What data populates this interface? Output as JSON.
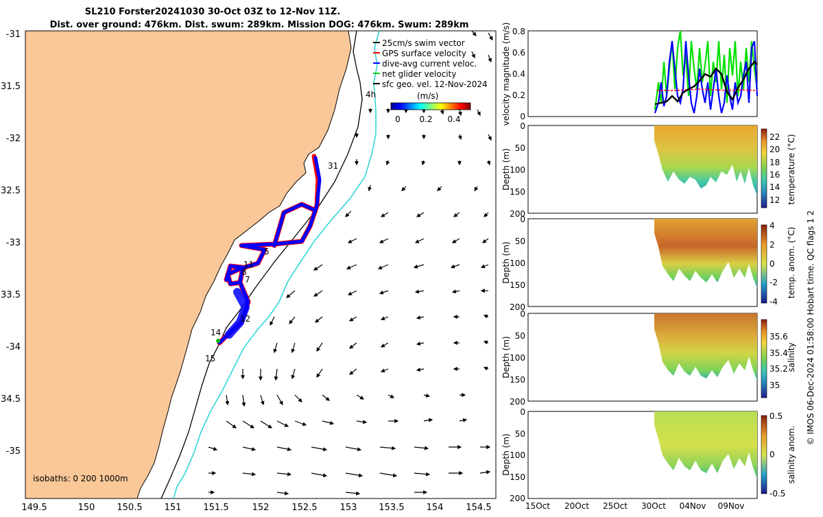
{
  "title": {
    "line1": "SL210 Forster20241030 30-Oct 03Z to 12-Nov 11Z.",
    "line2": "Dist. over ground: 476km. Dist. swum: 289km. Mission DOG: 476km. Swum: 289km"
  },
  "map": {
    "lat_ticks": [
      "-31",
      "31.5",
      "-32",
      "32.5",
      "-33",
      "33.5",
      "-34",
      "34.5",
      "-35"
    ],
    "lon_ticks": [
      "149.5",
      "150",
      "150.5",
      "151",
      "151.5",
      "152",
      "152.5",
      "153",
      "153.5",
      "154",
      "154.5"
    ],
    "legend": [
      "25cm/s swim vector",
      "GPS surface velocity",
      "dive-avg current veloc.",
      "net glider velocity",
      "sfc geo. vel. 12-Nov-2024"
    ],
    "colorbar_unit": "(m/s)",
    "colorbar_ticks": [
      "0",
      "0.2",
      "0.4"
    ],
    "track_labels": [
      "31",
      "5",
      "11",
      "7",
      "8",
      "12",
      "14",
      "15",
      "4h"
    ],
    "isobaths": "isobaths: 0   200  1000m",
    "colors": {
      "land": "#fac898",
      "track_blue": "#0000ff",
      "track_red": "#ff0000",
      "isobath_1000": "#33d6d6"
    }
  },
  "panels": [
    {
      "ylabel": "velocity magnitude (m/s)",
      "yticks": [
        "0.8",
        "0.6",
        "0.4",
        "0.2",
        "0"
      ],
      "colorbar_label": "",
      "cticks": []
    },
    {
      "ylabel": "Depth (m)",
      "yticks": [
        "0",
        "50",
        "100",
        "150",
        "200"
      ],
      "colorbar_label": "temperature (°C)",
      "cticks": [
        "22",
        "20",
        "18",
        "16",
        "14",
        "12"
      ]
    },
    {
      "ylabel": "Depth (m)",
      "yticks": [
        "0",
        "50",
        "100",
        "150",
        "200"
      ],
      "colorbar_label": "temp. anom. (°C)",
      "cticks": [
        "4",
        "2",
        "0",
        "-2",
        "-4"
      ]
    },
    {
      "ylabel": "Depth (m)",
      "yticks": [
        "0",
        "50",
        "100",
        "150",
        "200"
      ],
      "colorbar_label": "salinity",
      "cticks": [
        "35.6",
        "35.4",
        "35.2",
        "35"
      ]
    },
    {
      "ylabel": "Depth (m)",
      "yticks": [
        "0",
        "50",
        "100",
        "150",
        "200"
      ],
      "colorbar_label": "salinity anom.",
      "cticks": [
        "0.5",
        "0",
        "-0.5"
      ]
    }
  ],
  "time_ticks": [
    "15Oct",
    "20Oct",
    "25Oct",
    "30Oct",
    "04Nov",
    "09Nov"
  ],
  "footer": "© IMOS 06-Dec-2024 01:58:00 Hobart time. QC flags 1  2"
}
